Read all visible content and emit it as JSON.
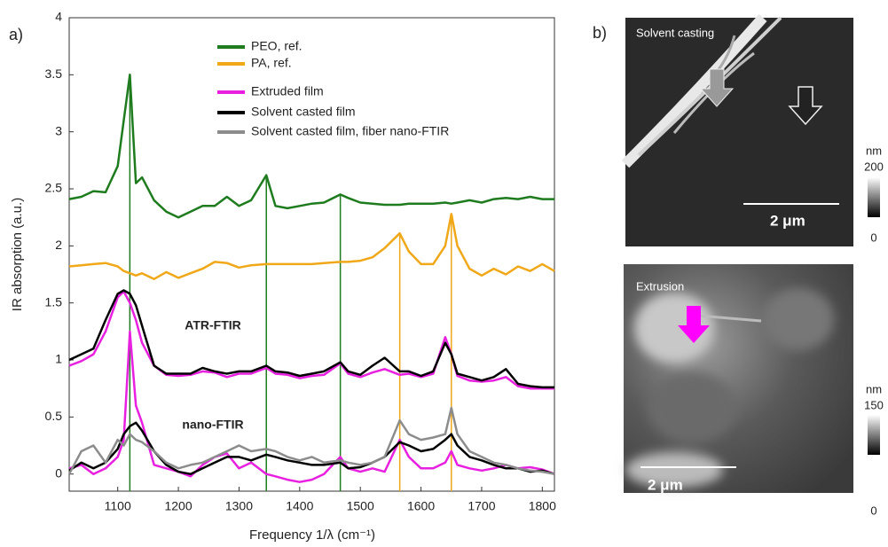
{
  "chart_data": {
    "type": "line",
    "panel_label": "a)",
    "xlabel": "Frequency 1/λ (cm⁻¹)",
    "ylabel": "IR absorption (a.u.)",
    "xlim": [
      1020,
      1820
    ],
    "ylim": [
      -0.15,
      4
    ],
    "xticks": [
      1100,
      1200,
      1300,
      1400,
      1500,
      1600,
      1700,
      1800
    ],
    "yticks": [
      0,
      0.5,
      1,
      1.5,
      2,
      2.5,
      3,
      3.5,
      4
    ],
    "annotations": [
      "ATR-FTIR",
      "nano-FTIR"
    ],
    "x": [
      1020,
      1040,
      1060,
      1080,
      1100,
      1110,
      1120,
      1130,
      1140,
      1160,
      1180,
      1200,
      1220,
      1240,
      1260,
      1280,
      1300,
      1320,
      1345,
      1360,
      1380,
      1400,
      1420,
      1440,
      1467,
      1480,
      1500,
      1520,
      1540,
      1565,
      1580,
      1600,
      1620,
      1640,
      1650,
      1660,
      1680,
      1700,
      1720,
      1740,
      1760,
      1780,
      1800,
      1820
    ],
    "series": [
      {
        "name": "PEO, ref.",
        "color": "#1e7b1e",
        "values": [
          2.41,
          2.43,
          2.48,
          2.47,
          2.7,
          3.1,
          3.5,
          2.55,
          2.6,
          2.4,
          2.3,
          2.25,
          2.3,
          2.35,
          2.35,
          2.43,
          2.35,
          2.4,
          2.62,
          2.35,
          2.33,
          2.35,
          2.37,
          2.38,
          2.45,
          2.42,
          2.38,
          2.37,
          2.36,
          2.36,
          2.37,
          2.37,
          2.37,
          2.38,
          2.37,
          2.38,
          2.4,
          2.38,
          2.41,
          2.42,
          2.41,
          2.43,
          2.41,
          2.41
        ]
      },
      {
        "name": "PA, ref.",
        "color": "#f0a818",
        "values": [
          1.82,
          1.83,
          1.84,
          1.85,
          1.82,
          1.78,
          1.76,
          1.74,
          1.76,
          1.71,
          1.77,
          1.72,
          1.76,
          1.8,
          1.86,
          1.85,
          1.81,
          1.83,
          1.84,
          1.84,
          1.84,
          1.84,
          1.84,
          1.85,
          1.86,
          1.86,
          1.87,
          1.9,
          1.98,
          2.11,
          1.95,
          1.84,
          1.84,
          2.0,
          2.28,
          2.0,
          1.8,
          1.74,
          1.8,
          1.75,
          1.82,
          1.78,
          1.84,
          1.78
        ]
      },
      {
        "name": "Extruded film",
        "color": "#e820e0",
        "values": [
          0.95,
          0.99,
          1.05,
          1.25,
          1.55,
          1.6,
          1.5,
          1.35,
          1.15,
          0.95,
          0.87,
          0.86,
          0.87,
          0.9,
          0.89,
          0.85,
          0.88,
          0.88,
          0.93,
          0.88,
          0.87,
          0.84,
          0.86,
          0.87,
          0.97,
          0.88,
          0.85,
          0.89,
          0.92,
          0.87,
          0.88,
          0.85,
          0.88,
          1.2,
          1.05,
          0.86,
          0.82,
          0.81,
          0.82,
          0.85,
          0.77,
          0.75,
          0.75,
          0.75
        ],
        "nano_values": [
          0.05,
          0.08,
          0.0,
          0.05,
          0.15,
          0.3,
          1.25,
          0.6,
          0.45,
          0.08,
          0.05,
          0.02,
          -0.02,
          0.08,
          0.15,
          0.18,
          0.05,
          0.1,
          0.0,
          -0.02,
          -0.05,
          -0.07,
          -0.05,
          0.0,
          0.15,
          0.05,
          0.02,
          0.05,
          0.02,
          0.3,
          0.15,
          0.05,
          0.05,
          0.1,
          0.2,
          0.08,
          0.05,
          0.03,
          0.05,
          0.08,
          0.05,
          0.06,
          0.04,
          0.0
        ]
      },
      {
        "name": "Solvent casted film",
        "color": "#000000",
        "values": [
          1.0,
          1.05,
          1.1,
          1.35,
          1.58,
          1.61,
          1.58,
          1.48,
          1.3,
          0.95,
          0.88,
          0.88,
          0.88,
          0.93,
          0.9,
          0.88,
          0.9,
          0.9,
          0.95,
          0.9,
          0.89,
          0.86,
          0.88,
          0.9,
          0.98,
          0.9,
          0.87,
          0.95,
          1.02,
          0.9,
          0.9,
          0.86,
          0.9,
          1.15,
          1.05,
          0.88,
          0.85,
          0.82,
          0.85,
          0.92,
          0.79,
          0.77,
          0.76,
          0.76
        ],
        "nano_values": [
          0.03,
          0.1,
          0.05,
          0.1,
          0.22,
          0.35,
          0.42,
          0.45,
          0.38,
          0.2,
          0.08,
          0.02,
          0.0,
          0.05,
          0.1,
          0.15,
          0.15,
          0.12,
          0.17,
          0.15,
          0.12,
          0.1,
          0.08,
          0.08,
          0.1,
          0.05,
          0.06,
          0.1,
          0.15,
          0.28,
          0.25,
          0.2,
          0.22,
          0.3,
          0.35,
          0.25,
          0.15,
          0.12,
          0.08,
          0.05,
          0.05,
          0.02,
          0.03,
          0.0
        ]
      },
      {
        "name": "Solvent casted film, fiber nano-FTIR",
        "color": "#8c8c8c",
        "values": [
          0.0,
          0.2,
          0.25,
          0.1,
          0.3,
          0.25,
          0.35,
          0.3,
          0.28,
          0.2,
          0.1,
          0.05,
          0.08,
          0.1,
          0.15,
          0.2,
          0.25,
          0.2,
          0.22,
          0.2,
          0.15,
          0.12,
          0.15,
          0.1,
          0.12,
          0.1,
          0.08,
          0.1,
          0.15,
          0.47,
          0.35,
          0.3,
          0.32,
          0.35,
          0.58,
          0.35,
          0.2,
          0.15,
          0.1,
          0.08,
          0.05,
          0.03,
          0.02,
          0.0
        ]
      }
    ],
    "vlines": [
      {
        "x": 1120,
        "series": 0
      },
      {
        "x": 1345,
        "series": 0
      },
      {
        "x": 1467,
        "series": 0
      },
      {
        "x": 1565,
        "series": 1
      },
      {
        "x": 1650,
        "series": 1
      }
    ]
  },
  "images": {
    "panel_label": "b)",
    "top": {
      "title": "Solvent casting",
      "scale_bar": "2 μm",
      "unit": "nm",
      "max": 200,
      "min": 0
    },
    "bottom": {
      "title": "Extrusion",
      "scale_bar": "2 μm",
      "unit": "nm",
      "max": 150,
      "min": 0
    }
  }
}
